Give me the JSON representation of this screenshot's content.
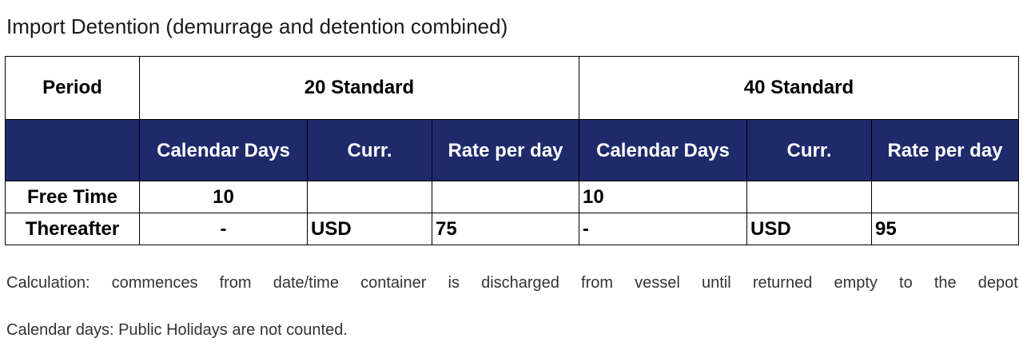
{
  "title": "Import Detention (demurrage and detention combined)",
  "table": {
    "period_header": "Period",
    "groups": [
      "20 Standard",
      "40 Standard"
    ],
    "subheaders": [
      "Calendar Days",
      "Curr.",
      "Rate per day"
    ],
    "rows": [
      {
        "label": "Free Time",
        "std20": {
          "days": "10",
          "curr": "",
          "rate": ""
        },
        "std40": {
          "days": "10",
          "curr": "",
          "rate": ""
        }
      },
      {
        "label": "Thereafter",
        "std20": {
          "days": "-",
          "curr": "USD",
          "rate": "75"
        },
        "std40": {
          "days": "-",
          "curr": "USD",
          "rate": "95"
        }
      }
    ]
  },
  "notes": {
    "calculation": "Calculation: commences from date/time container is discharged from vessel until returned empty to the depot",
    "calendar_days": "Calendar days: Public Holidays are not counted."
  },
  "colors": {
    "header_fill": "#1f2a6b",
    "header_text": "#ffffff"
  }
}
